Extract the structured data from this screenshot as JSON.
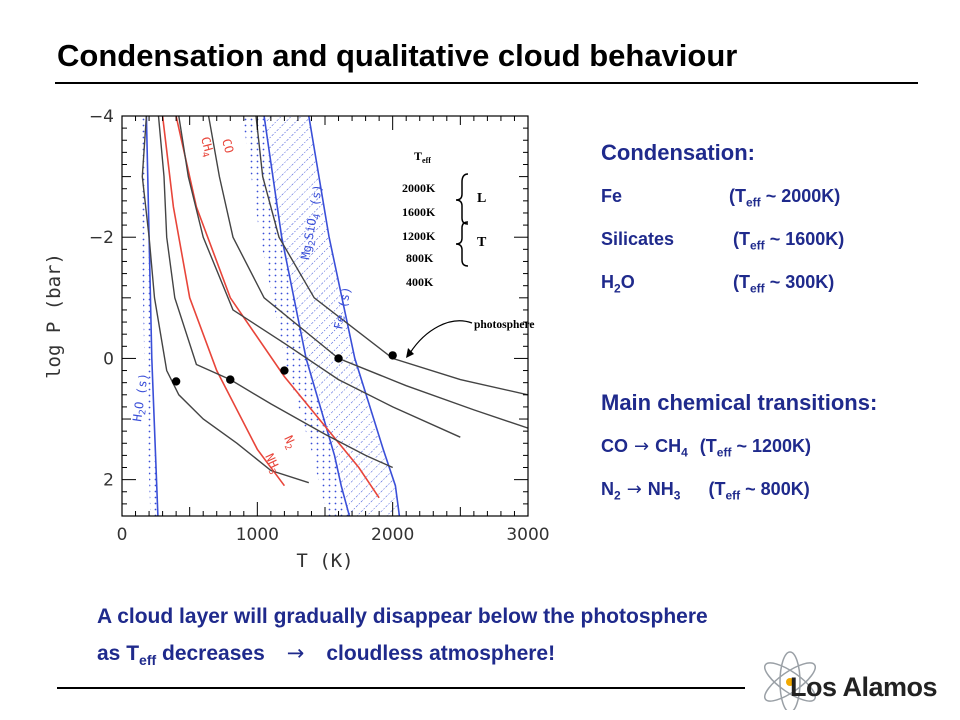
{
  "title": "Condensation and qualitative cloud behaviour",
  "condensation": {
    "heading": "Condensation:",
    "items": [
      {
        "species": "Fe",
        "teff": "~ 2000K"
      },
      {
        "species": "Silicates",
        "teff": "~ 1600K"
      },
      {
        "species_main": "H",
        "species_sub": "2",
        "species_tail": "O",
        "teff": "~ 300K"
      }
    ]
  },
  "transitions": {
    "heading": "Main chemical transitions:",
    "items": [
      {
        "from_main": "CO",
        "from_sub": "",
        "to_main": "CH",
        "to_sub": "4",
        "teff": "~ 1200K"
      },
      {
        "from_main": "N",
        "from_sub": "2",
        "to_main": "NH",
        "to_sub": "3",
        "teff": "~ 800K"
      }
    ]
  },
  "teff_open": "(T",
  "teff_sub": "eff",
  "teff_close": ")",
  "arrow": "→",
  "footer": {
    "line1": "A cloud layer will gradually disappear below the photosphere",
    "line2_a": "as T",
    "line2_sub": "eff",
    "line2_b": " decreases",
    "line2_c": "cloudless atmosphere!"
  },
  "logo": {
    "text": "Los Alamos"
  },
  "colors": {
    "text_blue": "#1f2a8c",
    "curve_red": "#e8453a",
    "curve_blue": "#3a4fd8",
    "profile": "#444444"
  },
  "chart_data": {
    "type": "line",
    "xlabel": "T (K)",
    "ylabel": "log P (bar)",
    "xlim": [
      0,
      3000
    ],
    "ylim": [
      2.6,
      -4
    ],
    "x_ticks": [
      "0",
      "1000",
      "2000",
      "3000"
    ],
    "y_ticks": [
      "−4",
      "−2",
      "0",
      "2"
    ],
    "y_tick_values": [
      -4,
      -2,
      0,
      2
    ],
    "x_tick_values": [
      0,
      1000,
      2000,
      3000
    ],
    "teff_legend": {
      "title_main": "T",
      "title_sub": "eff",
      "values": [
        "2000K",
        "1600K",
        "1200K",
        "800K",
        "400K"
      ],
      "groups": [
        "L",
        "T"
      ]
    },
    "annotations": {
      "photosphere": "photosphere"
    },
    "profiles": [
      {
        "teff": 400,
        "points": [
          [
            180,
            -4
          ],
          [
            150,
            -3
          ],
          [
            200,
            -2
          ],
          [
            240,
            -1
          ],
          [
            330,
            0.2
          ],
          [
            420,
            0.6
          ],
          [
            600,
            1.0
          ],
          [
            850,
            1.4
          ],
          [
            1100,
            1.85
          ],
          [
            1380,
            2.05
          ]
        ]
      },
      {
        "teff": 800,
        "points": [
          [
            270,
            -4
          ],
          [
            310,
            -3
          ],
          [
            330,
            -2
          ],
          [
            390,
            -1
          ],
          [
            550,
            0.1
          ],
          [
            800,
            0.35
          ],
          [
            1100,
            0.75
          ],
          [
            1500,
            1.25
          ],
          [
            1800,
            1.6
          ],
          [
            2000,
            1.8
          ]
        ]
      },
      {
        "teff": 1200,
        "points": [
          [
            420,
            -4
          ],
          [
            490,
            -3
          ],
          [
            600,
            -2
          ],
          [
            820,
            -0.8
          ],
          [
            1200,
            -0.25
          ],
          [
            1600,
            0.35
          ],
          [
            2000,
            0.8
          ],
          [
            2500,
            1.3
          ]
        ]
      },
      {
        "teff": 1600,
        "points": [
          [
            640,
            -4
          ],
          [
            720,
            -3
          ],
          [
            820,
            -2
          ],
          [
            1050,
            -1
          ],
          [
            1600,
            0
          ],
          [
            2100,
            0.45
          ],
          [
            2600,
            0.85
          ],
          [
            3000,
            1.15
          ]
        ]
      },
      {
        "teff": 2000,
        "points": [
          [
            990,
            -4
          ],
          [
            1040,
            -3
          ],
          [
            1160,
            -2
          ],
          [
            1420,
            -1
          ],
          [
            2000,
            0
          ],
          [
            2500,
            0.35
          ],
          [
            3000,
            0.6
          ]
        ]
      }
    ],
    "photosphere_points": [
      {
        "teff": 400,
        "x": 400,
        "y": 0.38
      },
      {
        "teff": 800,
        "x": 800,
        "y": 0.35
      },
      {
        "teff": 1200,
        "x": 1200,
        "y": 0.2
      },
      {
        "teff": 1600,
        "x": 1600,
        "y": 0.0
      },
      {
        "teff": 2000,
        "x": 2000,
        "y": -0.05
      }
    ],
    "condensation_curves": [
      {
        "name": "H2O (s)",
        "color": "blue",
        "points": [
          [
            180,
            -4
          ],
          [
            200,
            -2
          ],
          [
            220,
            0
          ],
          [
            255,
            2
          ],
          [
            265,
            2.6
          ]
        ]
      },
      {
        "name": "Fe (s)",
        "color": "blue",
        "points": [
          [
            1380,
            -4
          ],
          [
            1530,
            -2
          ],
          [
            1720,
            0
          ],
          [
            1930,
            1.5
          ],
          [
            2020,
            2.1
          ],
          [
            2050,
            2.6
          ]
        ]
      },
      {
        "name": "Mg2SiO4 (s)",
        "color": "blue",
        "points": [
          [
            1050,
            -4
          ],
          [
            1180,
            -2
          ],
          [
            1360,
            0
          ],
          [
            1570,
            1.6
          ],
          [
            1620,
            2.1
          ],
          [
            1680,
            2.6
          ]
        ]
      },
      {
        "name": "CO / CH4",
        "color": "red",
        "points": [
          [
            400,
            -4
          ],
          [
            550,
            -2.5
          ],
          [
            800,
            -1
          ],
          [
            1200,
            0.3
          ],
          [
            1750,
            1.8
          ],
          [
            1900,
            2.3
          ]
        ]
      },
      {
        "name": "N2 / NH3",
        "color": "red",
        "points": [
          [
            300,
            -4
          ],
          [
            380,
            -2.5
          ],
          [
            500,
            -1
          ],
          [
            700,
            0.2
          ],
          [
            1000,
            1.5
          ],
          [
            1200,
            2.1
          ]
        ]
      }
    ],
    "curve_labels": {
      "h2o": {
        "main": "H",
        "sub": "2",
        "tail": "O (s)"
      },
      "fe": "Fe (s)",
      "mg": {
        "a": "Mg",
        "b": "2",
        "c": "SiO",
        "d": "4",
        "e": " (s)"
      },
      "co": "CO",
      "ch4": {
        "main": "CH",
        "sub": "4"
      },
      "n2": {
        "main": "N",
        "sub": "2"
      },
      "nh3": {
        "main": "NH",
        "sub": "3"
      }
    }
  }
}
